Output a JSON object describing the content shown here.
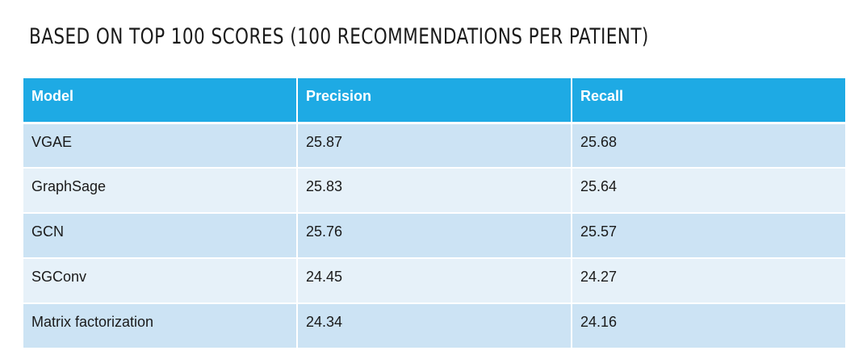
{
  "title": "BASED ON TOP 100 SCORES (100 RECOMMENDATIONS PER PATIENT)",
  "table": {
    "headers": [
      "Model",
      "Precision",
      "Recall"
    ],
    "rows": [
      [
        "VGAE",
        "25.87",
        "25.68"
      ],
      [
        "GraphSage",
        "25.83",
        "25.64"
      ],
      [
        "GCN",
        "25.76",
        "25.57"
      ],
      [
        "SGConv",
        "24.45",
        "24.27"
      ],
      [
        "Matrix factorization",
        "24.34",
        "24.16"
      ]
    ]
  },
  "colors": {
    "header_bg": "#1eaae4",
    "row_odd_bg": "#cce3f4",
    "row_even_bg": "#e6f1f9"
  }
}
